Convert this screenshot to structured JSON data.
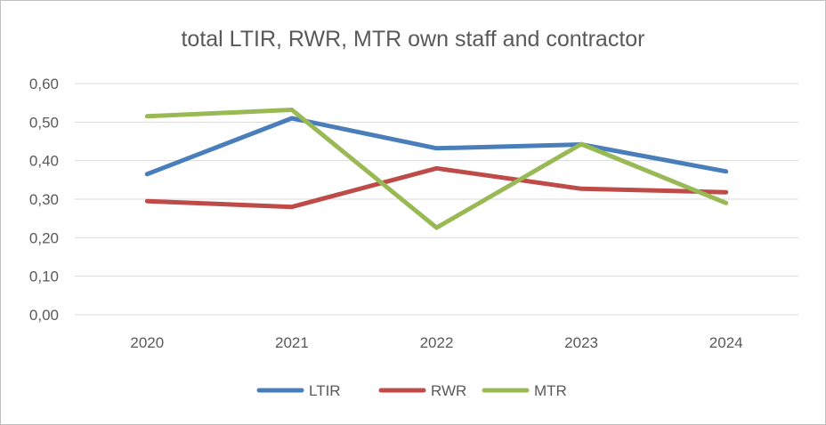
{
  "chart_data": {
    "type": "line",
    "title": "total LTIR, RWR, MTR own staff and contractor",
    "xlabel": "",
    "ylabel": "",
    "categories": [
      "2020",
      "2021",
      "2022",
      "2023",
      "2024"
    ],
    "ylim": [
      0,
      0.6
    ],
    "yticks": [
      0,
      0.1,
      0.2,
      0.3,
      0.4,
      0.5,
      0.6
    ],
    "ytick_labels": [
      "0,00",
      "0,10",
      "0,20",
      "0,30",
      "0,40",
      "0,50",
      "0,60"
    ],
    "grid": true,
    "legend_position": "bottom",
    "series": [
      {
        "name": "LTIR",
        "color": "#4a7ebb",
        "values": [
          0.365,
          0.51,
          0.432,
          0.442,
          0.372
        ]
      },
      {
        "name": "RWR",
        "color": "#be4b48",
        "values": [
          0.295,
          0.28,
          0.38,
          0.327,
          0.318
        ]
      },
      {
        "name": "MTR",
        "color": "#98b954",
        "values": [
          0.515,
          0.532,
          0.226,
          0.443,
          0.29
        ]
      }
    ]
  }
}
